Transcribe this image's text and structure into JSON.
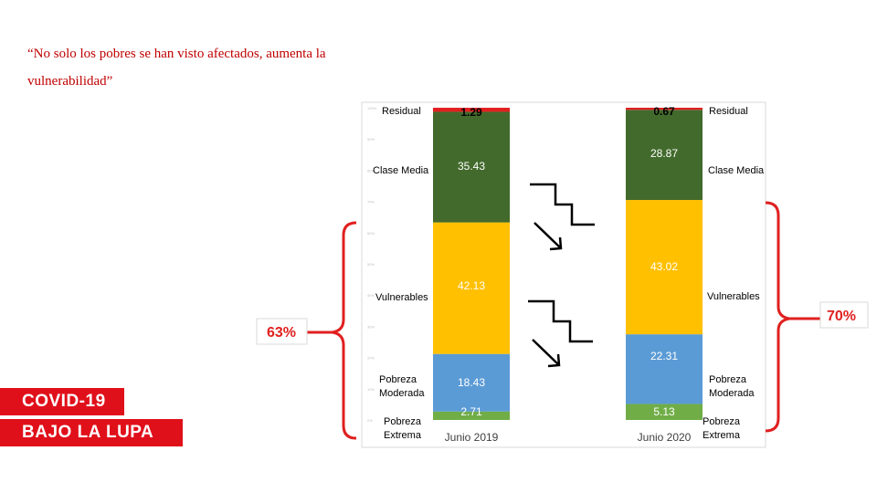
{
  "quote": "“No solo los pobres se han visto afectados, aumenta la vulnerabilidad”",
  "badges": {
    "line1": "COVID-19",
    "line2": "BAJO LA LUPA"
  },
  "colors": {
    "residual": "#e02020",
    "clase_media": "#426a2c",
    "vulnerables": "#ffc000",
    "pobreza_moderada": "#5b9bd5",
    "pobreza_extrema": "#70ad47",
    "bracket": "#e02020",
    "callout_text": "#e02020"
  },
  "chart_data": {
    "type": "bar",
    "stacked": true,
    "categories": [
      "Junio 2019",
      "Junio 2020"
    ],
    "series": [
      {
        "name": "Pobreza Extrema",
        "values": [
          2.71,
          5.13
        ]
      },
      {
        "name": "Pobreza Moderada",
        "values": [
          18.43,
          22.31
        ]
      },
      {
        "name": "Vulnerables",
        "values": [
          42.13,
          43.02
        ]
      },
      {
        "name": "Clase Media",
        "values": [
          35.43,
          28.87
        ]
      },
      {
        "name": "Residual",
        "values": [
          1.29,
          0.67
        ]
      }
    ],
    "left_labels": [
      "Residual",
      "Clase Media",
      "Vulnerables",
      "Pobreza Moderada",
      "Pobreza Extrema"
    ],
    "right_labels": [
      "Residual",
      "Clase Media",
      "Vulnerables",
      "Pobreza Moderada",
      "Pobreza Extrema"
    ],
    "ylim": [
      0,
      100
    ],
    "callouts": {
      "left": "63%",
      "right": "70%"
    },
    "arrows": "down-stair arrows between bars for Clase Media and Pobreza Moderada"
  }
}
